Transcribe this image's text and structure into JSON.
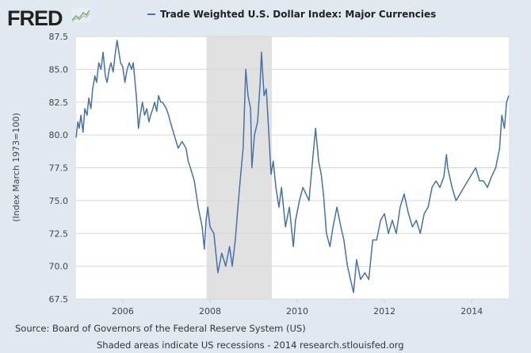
{
  "logo_text": "FRED",
  "colors": {
    "background": "#e1e9f0",
    "line": "#4572a7",
    "recession": "#e1e1e1",
    "plot": "#ffffff"
  },
  "chart_data": {
    "type": "line",
    "title": "Trade Weighted U.S. Dollar Index: Major Currencies",
    "xlabel": "",
    "ylabel": "(Index March 1973=100)",
    "xlim": [
      2004.93,
      2014.85
    ],
    "ylim": [
      67.5,
      87.5
    ],
    "yticks": [
      "67.5",
      "70.0",
      "72.5",
      "75.0",
      "77.5",
      "80.0",
      "82.5",
      "85.0",
      "87.5"
    ],
    "xticks": [
      "2006",
      "2008",
      "2010",
      "2012",
      "2014"
    ],
    "grid": "horizontal",
    "legend": "top-center",
    "recessions": [
      [
        2007.92,
        2009.42
      ]
    ],
    "series": [
      {
        "name": "Trade Weighted U.S. Dollar Index: Major Currencies",
        "x": [
          2004.93,
          2004.97,
          2005.0,
          2005.04,
          2005.09,
          2005.13,
          2005.18,
          2005.22,
          2005.27,
          2005.31,
          2005.36,
          2005.4,
          2005.45,
          2005.5,
          2005.55,
          2005.6,
          2005.64,
          2005.69,
          2005.73,
          2005.78,
          2005.82,
          2005.87,
          2005.95,
          2006.0,
          2006.05,
          2006.1,
          2006.15,
          2006.2,
          2006.24,
          2006.31,
          2006.36,
          2006.4,
          2006.45,
          2006.5,
          2006.55,
          2006.6,
          2006.64,
          2006.69,
          2006.73,
          2006.78,
          2006.82,
          2006.87,
          2006.91,
          2007.0,
          2007.05,
          2007.09,
          2007.18,
          2007.27,
          2007.36,
          2007.45,
          2007.5,
          2007.55,
          2007.64,
          2007.73,
          2007.82,
          2007.87,
          2007.91,
          2007.95,
          2008.0,
          2008.09,
          2008.18,
          2008.27,
          2008.36,
          2008.45,
          2008.51,
          2008.58,
          2008.64,
          2008.69,
          2008.76,
          2008.82,
          2008.87,
          2008.93,
          2008.96,
          2009.02,
          2009.09,
          2009.15,
          2009.18,
          2009.24,
          2009.29,
          2009.35,
          2009.4,
          2009.45,
          2009.51,
          2009.58,
          2009.64,
          2009.73,
          2009.82,
          2009.91,
          2009.96,
          2010.05,
          2010.13,
          2010.2,
          2010.27,
          2010.35,
          2010.42,
          2010.49,
          2010.55,
          2010.6,
          2010.67,
          2010.75,
          2010.82,
          2010.91,
          2011.0,
          2011.07,
          2011.15,
          2011.22,
          2011.29,
          2011.36,
          2011.45,
          2011.55,
          2011.64,
          2011.73,
          2011.82,
          2011.91,
          2012.0,
          2012.09,
          2012.18,
          2012.27,
          2012.36,
          2012.45,
          2012.55,
          2012.64,
          2012.73,
          2012.82,
          2012.91,
          2013.0,
          2013.09,
          2013.18,
          2013.27,
          2013.36,
          2013.42,
          2013.45,
          2013.55,
          2013.64,
          2013.73,
          2013.82,
          2013.91,
          2014.0,
          2014.09,
          2014.18,
          2014.27,
          2014.36,
          2014.45,
          2014.55,
          2014.64,
          2014.69,
          2014.75,
          2014.8,
          2014.85
        ],
        "y": [
          79.8,
          81.0,
          80.5,
          81.5,
          80.2,
          82.0,
          81.5,
          82.8,
          82.0,
          83.5,
          84.5,
          84.0,
          85.5,
          85.0,
          86.3,
          84.5,
          84.0,
          85.0,
          85.5,
          84.8,
          86.0,
          87.2,
          85.5,
          85.2,
          84.0,
          85.0,
          85.5,
          85.0,
          85.5,
          83.0,
          80.5,
          81.5,
          82.5,
          81.5,
          82.0,
          81.0,
          81.5,
          82.0,
          82.5,
          81.8,
          83.0,
          82.5,
          82.5,
          82.0,
          81.5,
          81.0,
          80.0,
          79.0,
          79.5,
          79.0,
          78.0,
          77.5,
          76.5,
          74.5,
          73.0,
          71.3,
          73.5,
          74.5,
          73.0,
          72.5,
          69.5,
          71.0,
          70.0,
          71.5,
          70.0,
          72.0,
          74.5,
          76.5,
          79.0,
          85.0,
          83.0,
          82.0,
          77.5,
          80.0,
          81.0,
          84.0,
          86.3,
          83.0,
          83.5,
          80.0,
          77.0,
          78.0,
          76.0,
          74.5,
          76.0,
          73.0,
          74.5,
          71.5,
          73.5,
          75.0,
          76.0,
          75.5,
          75.0,
          78.0,
          80.5,
          78.0,
          77.0,
          75.5,
          72.5,
          71.5,
          73.0,
          74.5,
          73.0,
          72.0,
          70.0,
          69.0,
          68.0,
          70.5,
          69.0,
          69.5,
          69.0,
          72.0,
          72.0,
          73.5,
          74.0,
          72.5,
          73.5,
          72.5,
          74.5,
          75.5,
          74.0,
          73.0,
          73.5,
          72.5,
          74.0,
          74.5,
          76.0,
          76.5,
          76.0,
          76.8,
          78.5,
          77.5,
          76.0,
          75.0,
          75.5,
          76.0,
          76.5,
          77.0,
          77.5,
          76.5,
          76.5,
          76.0,
          76.8,
          77.5,
          79.0,
          81.5,
          80.5,
          82.5,
          83.0
        ]
      }
    ]
  },
  "footer": {
    "source": "Source: Board of Governors of the Federal Reserve System (US)",
    "note": "Shaded areas indicate US recessions - 2014 research.stlouisfed.org"
  }
}
